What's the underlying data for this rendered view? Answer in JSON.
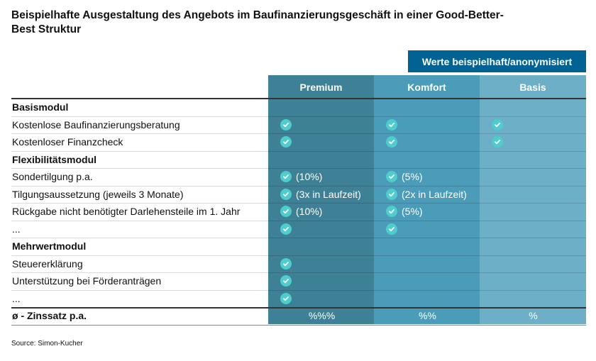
{
  "title": "Beispielhafte Ausgestaltung des Angebots im Baufinanzierungsgeschäft in einer Good-Better-Best Struktur",
  "badge": "Werte beispielhaft/anonymisiert",
  "colors": {
    "premium": "#3e8196",
    "komfort": "#4a9cb8",
    "basis": "#6cafc7",
    "badge": "#006394",
    "check": "#4fcccc"
  },
  "columns": [
    "Premium",
    "Komfort",
    "Basis"
  ],
  "rows": [
    {
      "label": "Basismodul",
      "section": true,
      "cells": [
        null,
        null,
        null
      ]
    },
    {
      "label": "Kostenlose Baufinanzierungsberatung",
      "cells": [
        {
          "check": true,
          "text": ""
        },
        {
          "check": true,
          "text": ""
        },
        {
          "check": true,
          "text": ""
        }
      ]
    },
    {
      "label": "Kostenloser Finanzcheck",
      "cells": [
        {
          "check": true,
          "text": ""
        },
        {
          "check": true,
          "text": ""
        },
        {
          "check": true,
          "text": ""
        }
      ]
    },
    {
      "label": "Flexibilitätsmodul",
      "section": true,
      "cells": [
        null,
        null,
        null
      ]
    },
    {
      "label": "Sondertilgung p.a.",
      "cells": [
        {
          "check": true,
          "text": "(10%)"
        },
        {
          "check": true,
          "text": "(5%)"
        },
        null
      ]
    },
    {
      "label": "Tilgungsaussetzung (jeweils 3 Monate)",
      "cells": [
        {
          "check": true,
          "text": "(3x in Laufzeit)"
        },
        {
          "check": true,
          "text": "(2x in Laufzeit)"
        },
        null
      ]
    },
    {
      "label": "Rückgabe nicht benötigter Darlehensteile im 1. Jahr",
      "cells": [
        {
          "check": true,
          "text": "(10%)"
        },
        {
          "check": true,
          "text": "(5%)"
        },
        null
      ]
    },
    {
      "label": "...",
      "cells": [
        {
          "check": true,
          "text": ""
        },
        {
          "check": true,
          "text": ""
        },
        null
      ]
    },
    {
      "label": "Mehrwertmodul",
      "section": true,
      "cells": [
        null,
        null,
        null
      ]
    },
    {
      "label": "Steuererklärung",
      "cells": [
        {
          "check": true,
          "text": ""
        },
        null,
        null
      ]
    },
    {
      "label": "Unterstützung bei Förderanträgen",
      "cells": [
        {
          "check": true,
          "text": ""
        },
        null,
        null
      ]
    },
    {
      "label": "...",
      "cells": [
        {
          "check": true,
          "text": ""
        },
        null,
        null
      ]
    },
    {
      "label": "ø - Zinssatz p.a.",
      "section": true,
      "center": true,
      "cells": [
        {
          "check": false,
          "text": "%%%"
        },
        {
          "check": false,
          "text": "%%"
        },
        {
          "check": false,
          "text": "%"
        }
      ]
    }
  ],
  "source": "Source: Simon-Kucher"
}
